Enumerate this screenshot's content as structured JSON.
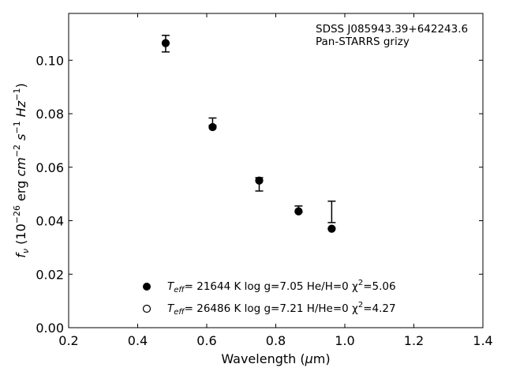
{
  "chart_data": {
    "type": "scatter",
    "title": "",
    "xlabel": "Wavelength (μm)",
    "ylabel": "f_ν (10^-26 erg cm^-2 s^-1 Hz^-1)",
    "xlim": [
      0.2,
      1.4
    ],
    "ylim": [
      0.0,
      0.1175
    ],
    "xticks": [
      0.2,
      0.4,
      0.6,
      0.8,
      1.0,
      1.2,
      1.4
    ],
    "xtick_labels": [
      "0.2",
      "0.4",
      "0.6",
      "0.8",
      "1.0",
      "1.2",
      "1.4"
    ],
    "yticks": [
      0.0,
      0.02,
      0.04,
      0.06,
      0.08,
      0.1
    ],
    "ytick_labels": [
      "0.00",
      "0.02",
      "0.04",
      "0.06",
      "0.08",
      "0.10"
    ],
    "grid": false,
    "annotation": {
      "line1": "SDSS J085943.39+642243.6",
      "line2": "Pan-STARRS grizy",
      "placement": "top-right"
    },
    "observed": {
      "x": [
        0.481,
        0.617,
        0.752,
        0.866,
        0.962
      ],
      "y": [
        0.1062,
        0.077,
        0.0536,
        0.0443,
        0.0433
      ],
      "err": [
        0.0031,
        0.0014,
        0.0025,
        0.0012,
        0.004
      ]
    },
    "series": [
      {
        "marker": "filled-circle",
        "color": "#000000",
        "legend_parts": {
          "teff_prefix": "T",
          "teff_sub": "eff",
          "text_mid": "= 21644 K  log g=7.05  He/H=0  χ",
          "sup": "2",
          "text_end": "=5.06"
        },
        "x": [
          0.481,
          0.617,
          0.752,
          0.866,
          0.962
        ],
        "y": [
          0.1064,
          0.075,
          0.055,
          0.0435,
          0.037
        ]
      },
      {
        "marker": "open-circle",
        "color": "#000000",
        "legend_parts": {
          "teff_prefix": "T",
          "teff_sub": "eff",
          "text_mid": "= 26486 K  log g=7.21  H/He=0  χ",
          "sup": "2",
          "text_end": "=4.27"
        },
        "x": [
          0.481,
          0.617,
          0.752,
          0.866,
          0.962
        ],
        "y": [
          0.1064,
          0.075,
          0.055,
          0.0435,
          0.037
        ]
      }
    ],
    "legend_placement": "lower-center"
  }
}
